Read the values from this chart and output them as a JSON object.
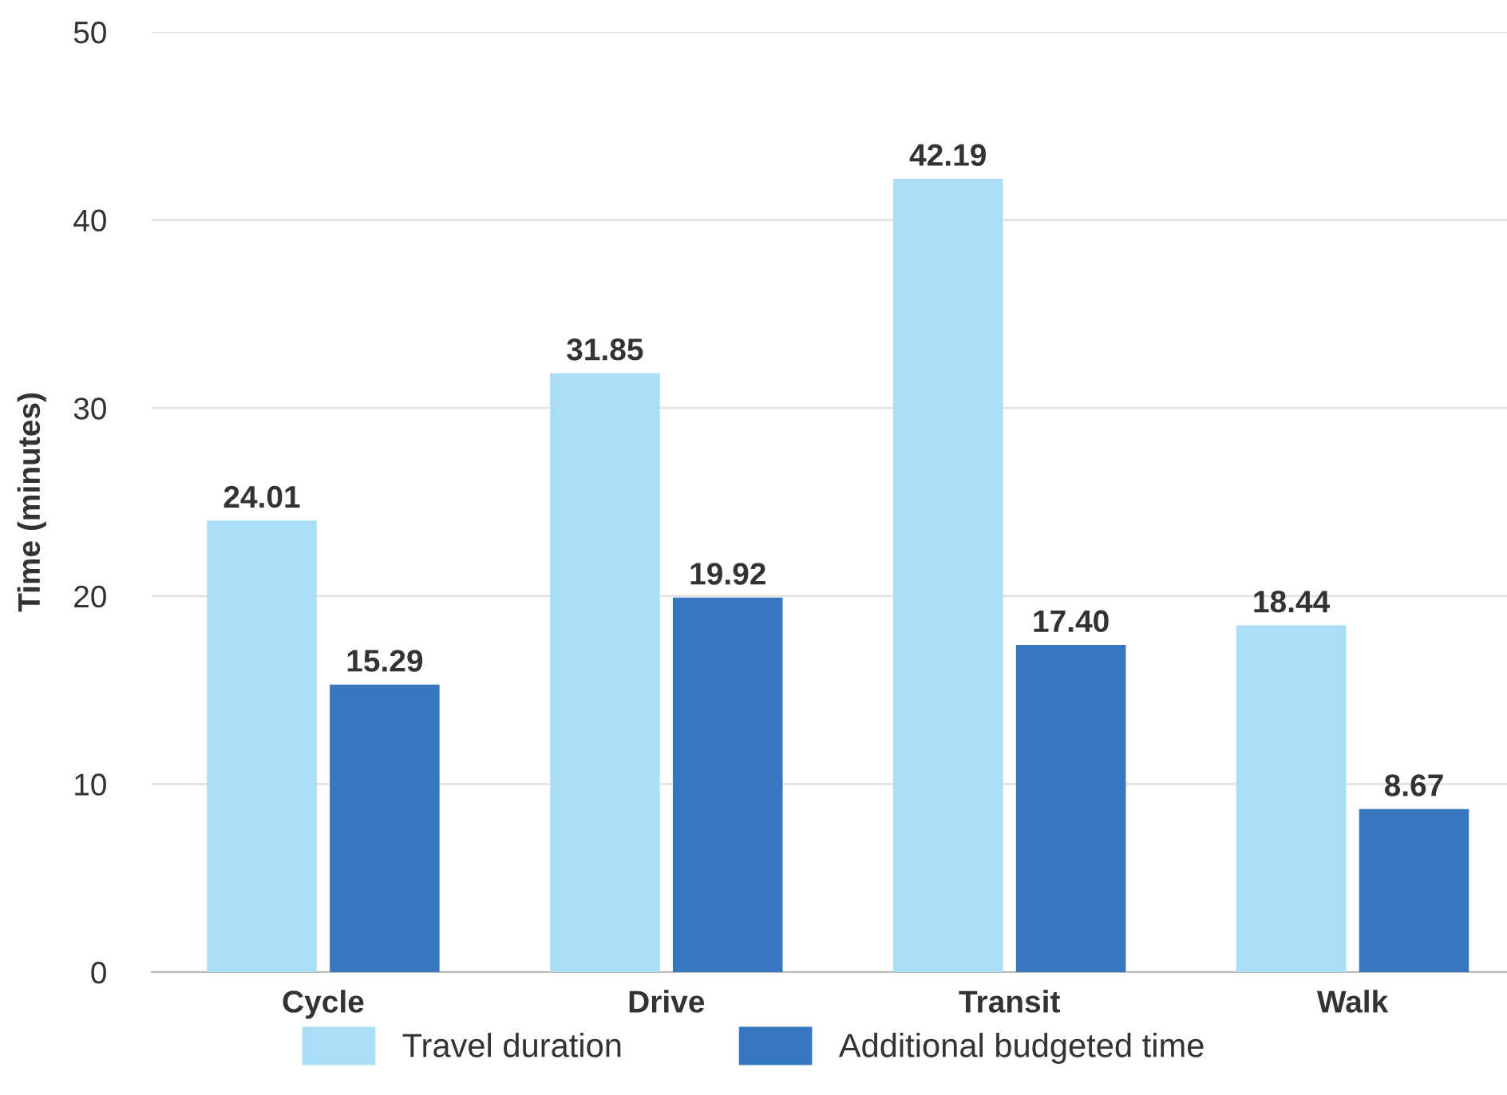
{
  "chart_data": {
    "type": "bar",
    "ylabel": "Time (minutes)",
    "categories": [
      "Cycle",
      "Drive",
      "Transit",
      "Walk"
    ],
    "series": [
      {
        "name": "Travel duration",
        "color": "#a9def6",
        "values": [
          24.01,
          31.85,
          42.19,
          18.44
        ],
        "value_labels": [
          "24.01",
          "31.85",
          "42.19",
          "18.44"
        ]
      },
      {
        "name": "Additional budgeted time",
        "color": "#3777be",
        "values": [
          15.29,
          19.92,
          17.4,
          8.67
        ],
        "value_labels": [
          "15.29",
          "19.92",
          "17.40",
          "8.67"
        ]
      }
    ],
    "ylim": [
      0,
      50
    ],
    "yticks": [
      0,
      10,
      20,
      30,
      40,
      50
    ],
    "grid": "y",
    "legend": "bottom"
  }
}
